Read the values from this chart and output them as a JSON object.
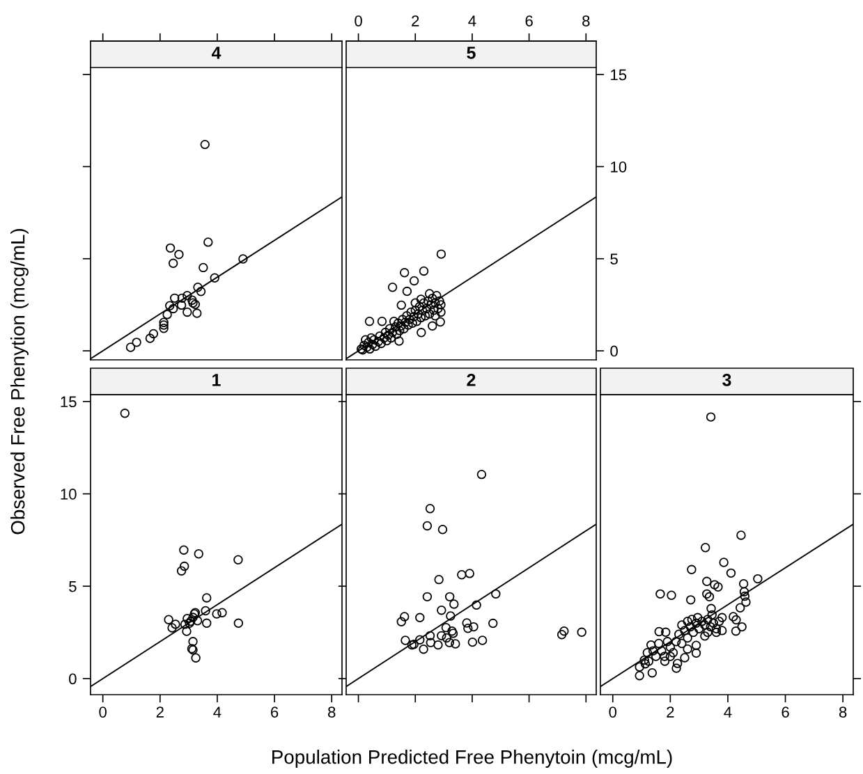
{
  "chart_data": [
    {
      "type": "scatter",
      "title": "4",
      "xlim": [
        -0.43,
        8.36
      ],
      "ylim": [
        -0.49,
        15.38
      ],
      "xticks": [
        0,
        2,
        4,
        6,
        8
      ],
      "yticks": [
        0,
        5,
        10,
        15
      ],
      "tick_labels": false,
      "series": [
        {
          "marker": "circle",
          "color": "#000000",
          "x": [
            3.57,
            3.68,
            2.36,
            2.66,
            2.46,
            3.51,
            4.9,
            3.91,
            3.32,
            3.43,
            2.95,
            2.51,
            2.77,
            3.15,
            3.23,
            2.34,
            2.46,
            2.75,
            2.95,
            3.29,
            2.25,
            2.13,
            2.13,
            1.77,
            1.65,
            1.18,
            0.97,
            2.13,
            3.12
          ],
          "values": [
            11.2,
            5.9,
            5.58,
            5.23,
            4.75,
            4.52,
            4.99,
            3.96,
            3.45,
            3.22,
            3.0,
            2.86,
            2.86,
            2.6,
            2.52,
            2.45,
            2.29,
            2.48,
            2.1,
            2.04,
            1.97,
            1.54,
            1.22,
            0.93,
            0.68,
            0.46,
            0.19,
            1.4,
            2.75
          ]
        },
        {
          "type": "line",
          "color": "#000000",
          "x": [
            -0.43,
            8.36
          ],
          "values": [
            -0.43,
            8.36
          ]
        }
      ]
    },
    {
      "type": "scatter",
      "title": "5",
      "xlim": [
        -0.43,
        8.36
      ],
      "ylim": [
        -0.49,
        15.38
      ],
      "xticks": [
        0,
        2,
        4,
        6,
        8
      ],
      "yticks": [
        0,
        5,
        10,
        15
      ],
      "series": [
        {
          "marker": "circle",
          "color": "#000000",
          "x": [
            2.91,
            1.62,
            2.3,
            1.96,
            1.2,
            1.71,
            0.39,
            0.83,
            2.21,
            1.43,
            2.88,
            2.6,
            1.51,
            0.1,
            0.2,
            0.15,
            0.3,
            0.35,
            0.4,
            0.5,
            0.55,
            0.6,
            0.7,
            0.75,
            0.8,
            0.9,
            0.95,
            1.0,
            1.05,
            1.1,
            1.15,
            1.2,
            1.3,
            1.35,
            1.4,
            1.45,
            1.5,
            1.55,
            1.6,
            1.65,
            1.7,
            1.75,
            1.8,
            1.85,
            1.9,
            1.95,
            2.0,
            2.05,
            2.1,
            2.15,
            2.2,
            2.25,
            2.3,
            2.35,
            2.4,
            2.45,
            2.5,
            2.55,
            2.6,
            2.65,
            2.7,
            2.75,
            2.8,
            2.85,
            2.9,
            2.9,
            2.5,
            2.2,
            0.25,
            0.45,
            1.25,
            2.0,
            2.7
          ],
          "values": [
            5.25,
            4.24,
            4.33,
            3.8,
            3.45,
            3.23,
            1.6,
            1.6,
            0.99,
            0.53,
            1.57,
            1.35,
            2.48,
            0.1,
            0.3,
            0.05,
            0.2,
            0.45,
            0.1,
            0.35,
            0.6,
            0.25,
            0.5,
            0.8,
            0.4,
            0.7,
            1.0,
            0.55,
            0.85,
            1.2,
            0.7,
            1.0,
            1.3,
            0.9,
            1.5,
            1.1,
            1.35,
            1.7,
            1.2,
            1.55,
            1.9,
            1.4,
            1.7,
            2.1,
            1.5,
            1.85,
            2.2,
            1.6,
            2.0,
            2.4,
            1.8,
            2.2,
            2.6,
            1.9,
            2.3,
            2.7,
            2.0,
            2.5,
            2.85,
            2.2,
            2.6,
            3.0,
            2.3,
            2.7,
            2.5,
            2.1,
            3.1,
            2.8,
            0.6,
            0.7,
            1.6,
            2.6,
            1.9
          ]
        },
        {
          "type": "line",
          "color": "#000000",
          "x": [
            -0.43,
            8.36
          ],
          "values": [
            -0.43,
            8.36
          ]
        }
      ]
    },
    {
      "type": "scatter",
      "title": "1",
      "ylabel": "Observed Free Phenytion (mcg/mL)",
      "xlim": [
        -0.43,
        8.36
      ],
      "ylim": [
        -0.87,
        15.37
      ],
      "xticks": [
        0,
        2,
        4,
        6,
        8
      ],
      "yticks": [
        0,
        5,
        10,
        15
      ],
      "series": [
        {
          "marker": "circle",
          "color": "#000000",
          "x": [
            0.77,
            2.83,
            3.35,
            4.73,
            2.85,
            2.75,
            3.63,
            3.59,
            3.98,
            4.17,
            3.23,
            2.3,
            2.54,
            2.42,
            2.95,
            3.03,
            3.15,
            3.31,
            2.87,
            2.93,
            3.63,
            4.74,
            3.15,
            3.11,
            3.15,
            3.25,
            3.2,
            3.07
          ],
          "values": [
            14.36,
            6.96,
            6.75,
            6.43,
            6.08,
            5.83,
            4.37,
            3.67,
            3.5,
            3.57,
            3.57,
            3.19,
            2.94,
            2.75,
            3.25,
            3.0,
            3.31,
            3.13,
            2.94,
            2.56,
            3.0,
            3.0,
            2.0,
            1.62,
            1.55,
            1.12,
            3.5,
            3.1
          ]
        },
        {
          "type": "line",
          "color": "#000000",
          "x": [
            -0.43,
            8.36
          ],
          "values": [
            -0.43,
            8.36
          ]
        }
      ]
    },
    {
      "type": "scatter",
      "title": "2",
      "xlabel": "Population Predicted Free Phenytoin (mcg/mL)",
      "xlim": [
        -0.43,
        8.36
      ],
      "ylim": [
        -0.87,
        15.37
      ],
      "xticks": [
        0,
        2,
        4,
        6,
        8
      ],
      "yticks": [
        0,
        5,
        10,
        15
      ],
      "tick_labels": false,
      "series": [
        {
          "marker": "circle",
          "color": "#000000",
          "x": [
            4.33,
            2.52,
            2.42,
            2.96,
            3.63,
            3.91,
            2.83,
            2.42,
            3.21,
            3.36,
            4.15,
            4.83,
            2.92,
            3.24,
            2.16,
            1.62,
            1.51,
            3.81,
            3.85,
            4.05,
            4.73,
            3.08,
            3.29,
            1.65,
            1.88,
            2.16,
            2.29,
            2.52,
            2.54,
            2.8,
            2.92,
            3.2,
            3.41,
            3.33,
            4.01,
            4.36,
            7.23,
            7.15,
            7.85,
            1.95,
            3.1
          ],
          "values": [
            11.05,
            9.2,
            8.27,
            8.07,
            5.62,
            5.69,
            5.36,
            4.43,
            4.43,
            4.03,
            3.98,
            4.58,
            3.7,
            3.39,
            3.3,
            3.35,
            3.08,
            3.01,
            2.72,
            2.8,
            2.99,
            2.76,
            2.57,
            2.07,
            1.82,
            2.1,
            1.59,
            2.32,
            1.95,
            1.82,
            2.32,
            1.95,
            1.88,
            2.45,
            1.97,
            2.07,
            2.57,
            2.38,
            2.51,
            1.85,
            2.2
          ]
        },
        {
          "type": "line",
          "color": "#000000",
          "x": [
            -0.43,
            8.36
          ],
          "values": [
            -0.43,
            8.36
          ]
        }
      ]
    },
    {
      "type": "scatter",
      "title": "3",
      "xlim": [
        -0.43,
        8.36
      ],
      "ylim": [
        -0.87,
        15.37
      ],
      "xticks": [
        0,
        2,
        4,
        6,
        8
      ],
      "yticks": [
        0,
        5,
        10,
        15
      ],
      "tick_labels": "x",
      "series": [
        {
          "marker": "circle",
          "color": "#000000",
          "x": [
            3.41,
            4.46,
            3.22,
            3.86,
            2.74,
            4.11,
            5.04,
            4.55,
            3.27,
            3.54,
            3.66,
            1.65,
            2.04,
            2.71,
            3.27,
            3.36,
            4.59,
            4.63,
            4.57,
            3.42,
            4.43,
            4.19,
            4.29,
            4.49,
            4.28,
            1.61,
            1.84,
            1.33,
            0.93,
            0.93,
            1.37,
            1.25,
            1.13,
            2.21,
            2.25,
            1.81,
            2.5,
            2.9,
            2.3,
            2.4,
            2.5,
            2.6,
            2.7,
            2.75,
            2.8,
            2.9,
            2.95,
            3.0,
            3.1,
            3.2,
            3.3,
            3.4,
            3.5,
            3.6,
            3.7,
            2.6,
            2.2,
            2.0,
            1.9,
            1.7,
            1.6,
            1.5,
            1.4,
            2.1,
            2.4,
            2.9,
            3.2,
            3.6,
            2.0,
            1.8,
            2.6,
            3.3,
            3.8,
            3.8,
            3.45,
            1.2,
            1.1
          ],
          "values": [
            14.16,
            7.76,
            7.09,
            6.29,
            5.9,
            5.71,
            5.4,
            5.13,
            5.26,
            5.08,
            4.96,
            4.58,
            4.51,
            4.26,
            4.58,
            4.43,
            4.46,
            4.14,
            4.7,
            3.79,
            3.83,
            3.35,
            3.18,
            2.8,
            2.57,
            2.54,
            2.51,
            1.82,
            0.63,
            0.16,
            0.31,
            0.94,
            0.8,
            0.56,
            0.82,
            0.94,
            1.13,
            1.38,
            2.4,
            2.9,
            2.6,
            3.1,
            2.8,
            3.2,
            2.5,
            3.0,
            3.3,
            2.7,
            3.1,
            2.9,
            3.2,
            2.8,
            3.0,
            2.7,
            3.1,
            2.2,
            2.0,
            1.7,
            2.0,
            1.5,
            1.9,
            1.2,
            1.5,
            1.4,
            1.9,
            1.8,
            2.3,
            2.5,
            1.2,
            1.2,
            1.6,
            2.5,
            2.6,
            3.3,
            3.45,
            1.4,
            1.0
          ]
        },
        {
          "type": "line",
          "color": "#000000",
          "x": [
            -0.43,
            8.36
          ],
          "values": [
            -0.43,
            8.36
          ]
        }
      ]
    }
  ]
}
